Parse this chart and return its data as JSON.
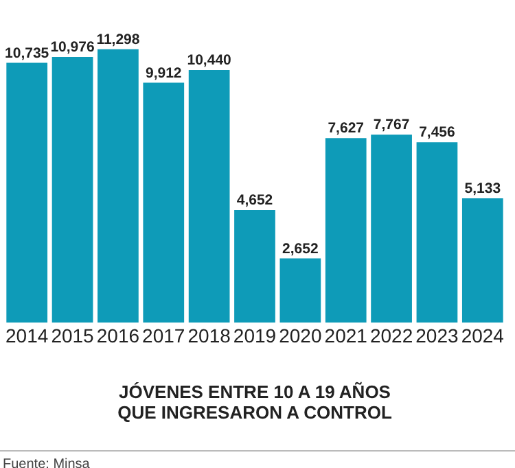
{
  "chart_data": {
    "type": "bar",
    "title": "JÓVENES ENTRE 10 A 19 AÑOS QUE INGRESARON A CONTROL",
    "categories": [
      "2014",
      "2015",
      "2016",
      "2017",
      "2018",
      "2019",
      "2020",
      "2021",
      "2022",
      "2023",
      "2024"
    ],
    "values": [
      10735,
      10976,
      11298,
      9912,
      10440,
      4652,
      2652,
      7627,
      7767,
      7456,
      5133
    ],
    "value_labels": [
      "10,735",
      "10,976",
      "11,298",
      "9,912",
      "10,440",
      "4,652",
      "2,652",
      "7,627",
      "7,767",
      "7,456",
      "5,133"
    ],
    "color": "#0e9bb8",
    "annotations": [
      "Fuente: Minsa"
    ]
  }
}
